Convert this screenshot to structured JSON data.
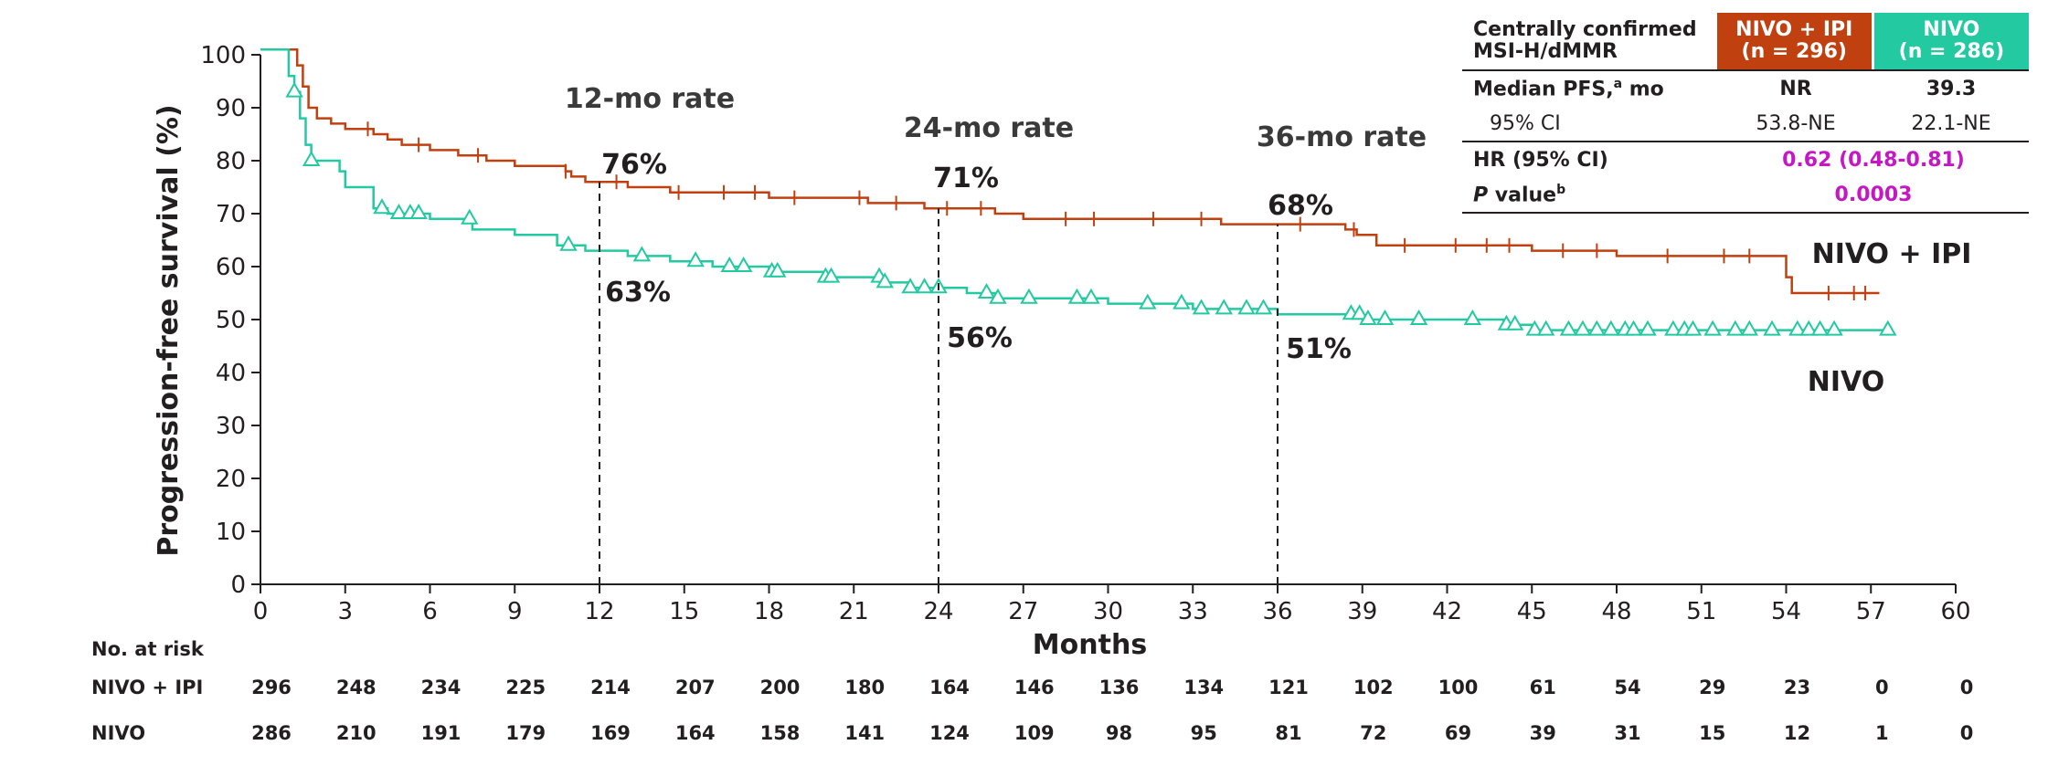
{
  "chart_data": {
    "type": "line",
    "subtype": "kaplan-meier",
    "xlabel": "Months",
    "ylabel": "Progression-free survival (%)",
    "xlim": [
      0,
      60
    ],
    "ylim": [
      0,
      100
    ],
    "xticks": [
      0,
      3,
      6,
      9,
      12,
      15,
      18,
      21,
      24,
      27,
      30,
      33,
      36,
      39,
      42,
      45,
      48,
      51,
      54,
      57,
      60
    ],
    "yticks": [
      0,
      10,
      20,
      30,
      40,
      50,
      60,
      70,
      80,
      90,
      100
    ],
    "grid": false,
    "colors": {
      "nivo_ipi": "#c0400f",
      "nivo": "#23c9a0",
      "highlight": "#c418c4"
    },
    "series": [
      {
        "name": "NIVO + IPI",
        "censor_marker": "tick",
        "points": [
          [
            0,
            101
          ],
          [
            1.2,
            101
          ],
          [
            1.3,
            98
          ],
          [
            1.5,
            94
          ],
          [
            1.7,
            90
          ],
          [
            2.0,
            88
          ],
          [
            2.5,
            87
          ],
          [
            3.0,
            86
          ],
          [
            4.0,
            85
          ],
          [
            4.5,
            84
          ],
          [
            5.0,
            83
          ],
          [
            6.0,
            82
          ],
          [
            7.0,
            81
          ],
          [
            8.0,
            80
          ],
          [
            9.0,
            79
          ],
          [
            10.8,
            78
          ],
          [
            11.0,
            77
          ],
          [
            11.5,
            76
          ],
          [
            13.0,
            75
          ],
          [
            14.5,
            74
          ],
          [
            16.0,
            74
          ],
          [
            18.0,
            73
          ],
          [
            20.0,
            73
          ],
          [
            21.5,
            72
          ],
          [
            23.5,
            71
          ],
          [
            24.0,
            71
          ],
          [
            26.0,
            70
          ],
          [
            27.0,
            69
          ],
          [
            33.5,
            69
          ],
          [
            34.0,
            68
          ],
          [
            36.0,
            68
          ],
          [
            38.0,
            68
          ],
          [
            38.4,
            67
          ],
          [
            38.8,
            66
          ],
          [
            39.5,
            64
          ],
          [
            42.0,
            64
          ],
          [
            44.0,
            64
          ],
          [
            45.0,
            63
          ],
          [
            47.0,
            63
          ],
          [
            48.0,
            62
          ],
          [
            50.0,
            62
          ],
          [
            53.5,
            62
          ],
          [
            54.0,
            58
          ],
          [
            54.2,
            55
          ],
          [
            57.3,
            55
          ]
        ],
        "censored_x": [
          3.8,
          5.6,
          7.7,
          10.8,
          12.6,
          14.8,
          16.4,
          17.5,
          18.9,
          21.2,
          22.5,
          24.3,
          25.5,
          28.5,
          29.5,
          31.6,
          33.3,
          36.8,
          38.7,
          40.5,
          42.3,
          43.4,
          44.2,
          46.1,
          47.3,
          49.8,
          51.8,
          52.7,
          55.5,
          56.4,
          56.8
        ],
        "labels": [
          {
            "x": 12,
            "text": "76%"
          },
          {
            "x": 24,
            "text": "71%"
          },
          {
            "x": 36,
            "text": "68%"
          }
        ],
        "label": "NIVO + IPI",
        "at_risk": [
          296,
          248,
          234,
          225,
          214,
          207,
          200,
          180,
          164,
          146,
          136,
          134,
          121,
          102,
          100,
          61,
          54,
          29,
          23,
          0,
          0
        ]
      },
      {
        "name": "NIVO",
        "censor_marker": "triangle",
        "points": [
          [
            0,
            101
          ],
          [
            1.0,
            96
          ],
          [
            1.2,
            93
          ],
          [
            1.4,
            88
          ],
          [
            1.6,
            83
          ],
          [
            1.8,
            80
          ],
          [
            2.8,
            78
          ],
          [
            3.0,
            75
          ],
          [
            4.0,
            71
          ],
          [
            4.5,
            70
          ],
          [
            6.0,
            69
          ],
          [
            7.5,
            67
          ],
          [
            9.0,
            66
          ],
          [
            10.5,
            64
          ],
          [
            11.5,
            63
          ],
          [
            13.0,
            62
          ],
          [
            14.5,
            61
          ],
          [
            16.0,
            60
          ],
          [
            18.0,
            59
          ],
          [
            20.0,
            58
          ],
          [
            22.0,
            57
          ],
          [
            23.0,
            56
          ],
          [
            24.0,
            56
          ],
          [
            25.0,
            55
          ],
          [
            26.0,
            54
          ],
          [
            28.0,
            54
          ],
          [
            30.0,
            53
          ],
          [
            32.0,
            53
          ],
          [
            33.0,
            52
          ],
          [
            35.0,
            52
          ],
          [
            36.0,
            51
          ],
          [
            37.0,
            51
          ],
          [
            39.0,
            50
          ],
          [
            43.0,
            50
          ],
          [
            44.0,
            49
          ],
          [
            45.0,
            48
          ],
          [
            57.6,
            48
          ]
        ],
        "censored_x": [
          1.2,
          1.8,
          4.3,
          4.9,
          5.3,
          5.6,
          7.4,
          10.9,
          13.5,
          15.4,
          16.6,
          17.1,
          18.1,
          18.3,
          20.0,
          20.2,
          21.9,
          22.1,
          23.0,
          23.5,
          24.0,
          25.7,
          26.1,
          27.2,
          28.9,
          29.4,
          31.4,
          32.6,
          33.3,
          34.1,
          34.9,
          35.5,
          38.6,
          38.9,
          39.2,
          39.8,
          41.0,
          42.9,
          44.1,
          44.4,
          45.1,
          45.5,
          46.3,
          46.8,
          47.3,
          47.8,
          48.3,
          48.6,
          49.1,
          50.0,
          50.4,
          50.7,
          51.4,
          52.2,
          52.7,
          53.5,
          54.4,
          54.8,
          55.2,
          55.7,
          57.6
        ],
        "labels": [
          {
            "x": 12,
            "text": "63%"
          },
          {
            "x": 24,
            "text": "56%"
          },
          {
            "x": 36,
            "text": "51%"
          }
        ],
        "label": "NIVO",
        "at_risk": [
          286,
          210,
          191,
          179,
          169,
          164,
          158,
          141,
          124,
          109,
          98,
          95,
          81,
          72,
          69,
          39,
          31,
          15,
          12,
          1,
          0
        ]
      }
    ],
    "landmarks": [
      {
        "x": 12,
        "label": "12-mo rate"
      },
      {
        "x": 24,
        "label": "24-mo rate"
      },
      {
        "x": 36,
        "label": "36-mo rate"
      }
    ],
    "at_risk_title": "No. at risk",
    "at_risk_labels": [
      "NIVO + IPI",
      "NIVO"
    ]
  },
  "summary_table": {
    "header_label_line1": "Centrally confirmed",
    "header_label_line2": "MSI-H/dMMR",
    "col1_line1": "NIVO + IPI",
    "col1_line2": "(n = 296)",
    "col2_line1": "NIVO",
    "col2_line2": "(n = 286)",
    "median_label": "Median PFS,",
    "median_sup": "a",
    "median_unit": " mo",
    "median_col1": "NR",
    "median_col2": "39.3",
    "ci_label": "95% CI",
    "ci_col1": "53.8-NE",
    "ci_col2": "22.1-NE",
    "hr_label": "HR (95% CI)",
    "hr_value": "0.62 (0.48-0.81)",
    "p_label_italic": "P",
    "p_label_rest": " value",
    "p_sup": "b",
    "p_value": "0.0003"
  }
}
